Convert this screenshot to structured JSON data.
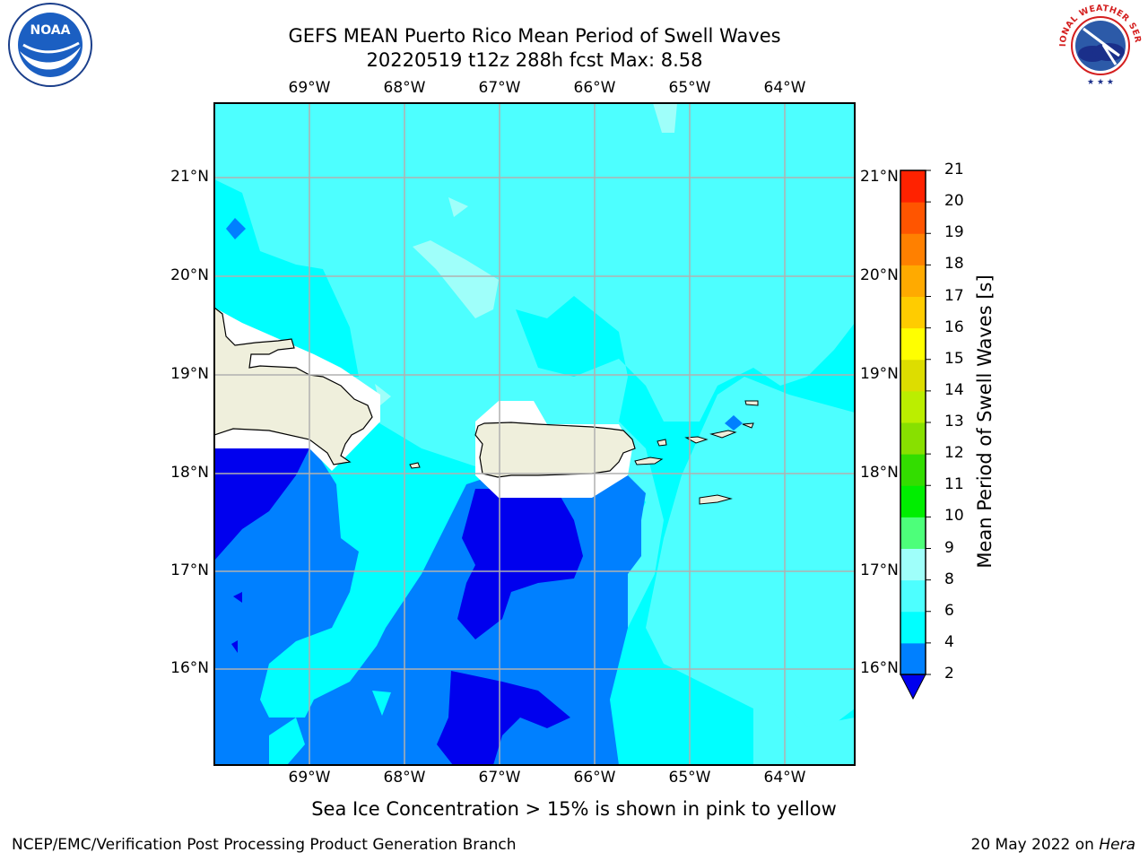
{
  "title": {
    "line1": "GEFS MEAN Puerto Rico Mean Period of Swell Waves",
    "line2": "20220519 t12z 288h fcst   Max: 8.58"
  },
  "map": {
    "lon_labels": [
      "69°W",
      "68°W",
      "67°W",
      "66°W",
      "65°W",
      "64°W"
    ],
    "lat_labels": [
      "21°N",
      "20°N",
      "19°N",
      "18°N",
      "17°N",
      "16°N"
    ]
  },
  "colorbar": {
    "title": "Mean Period of Swell Waves [s]",
    "ticks": [
      "2",
      "4",
      "6",
      "8",
      "9",
      "10",
      "11",
      "12",
      "13",
      "14",
      "15",
      "16",
      "17",
      "18",
      "19",
      "20",
      "21"
    ],
    "colors": [
      "#0000ee",
      "#0080ff",
      "#00ffff",
      "#4dffff",
      "#9ffffa",
      "#4dff7a",
      "#00ee00",
      "#33dd00",
      "#88e000",
      "#bbee00",
      "#dddd00",
      "#ffff00",
      "#ffcc00",
      "#ffaa00",
      "#ff8000",
      "#ff5500",
      "#ff2200",
      "#ff0000"
    ]
  },
  "colors": {
    "land": "#efefdc",
    "grid": "#b0b0b0"
  },
  "logos": {
    "left": "noaa-logo",
    "right": "nws-logo",
    "left_text": "NOAA",
    "right_text": "NATIONAL WEATHER SERVICE"
  },
  "note": "Sea Ice Concentration > 15% is shown in pink to yellow",
  "footer": {
    "left": "NCEP/EMC/Verification Post Processing Product Generation Branch",
    "right_date": "20 May 2022 on ",
    "right_host": "Hera"
  }
}
